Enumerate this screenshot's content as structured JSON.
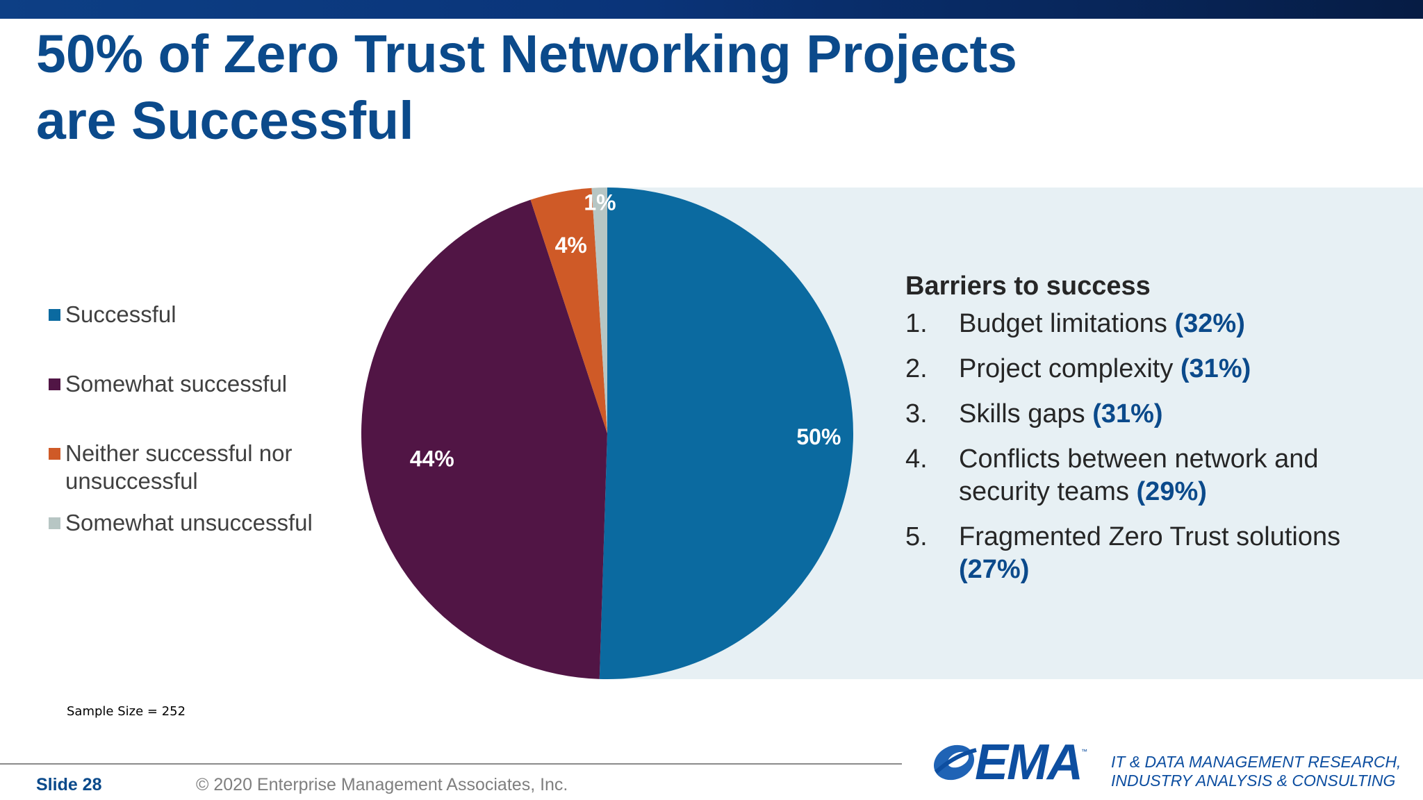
{
  "slide": {
    "title_line1": "50% of Zero Trust Networking Projects",
    "title_line2": "are Successful",
    "sample_size": "Sample Size = 252",
    "slide_number": "Slide 28",
    "copyright": "© 2020 Enterprise Management Associates, Inc.",
    "logo_text": "EMA",
    "logo_tm": "™",
    "tagline_line1": "IT & DATA MANAGEMENT RESEARCH,",
    "tagline_line2": "INDUSTRY ANALYSIS & CONSULTING"
  },
  "chart_data": {
    "type": "pie",
    "title": "",
    "categories": [
      "Successful",
      "Somewhat successful",
      "Neither successful nor unsuccessful",
      "Somewhat unsuccessful"
    ],
    "values": [
      50,
      44,
      4,
      1
    ],
    "data_labels": [
      "50%",
      "44%",
      "4%",
      "1%"
    ],
    "colors": [
      "#0b6aa0",
      "#511545",
      "#cf5a27",
      "#b7c6c4"
    ],
    "legend": {
      "placement": "left",
      "entries": [
        "Successful",
        "Somewhat successful",
        "Neither successful nor unsuccessful",
        "Somewhat unsuccessful"
      ]
    }
  },
  "barriers": {
    "title": "Barriers to success",
    "items": [
      {
        "num": "1.",
        "text": "Budget limitations",
        "pct": "(32%)"
      },
      {
        "num": "2.",
        "text": "Project complexity",
        "pct": "(31%)"
      },
      {
        "num": "3.",
        "text": "Skills gaps",
        "pct": "(31%)"
      },
      {
        "num": "4.",
        "text": "Conflicts between network and security teams",
        "pct": "(29%)"
      },
      {
        "num": "5.",
        "text": "Fragmented Zero Trust solutions",
        "pct": "(27%)"
      }
    ]
  }
}
